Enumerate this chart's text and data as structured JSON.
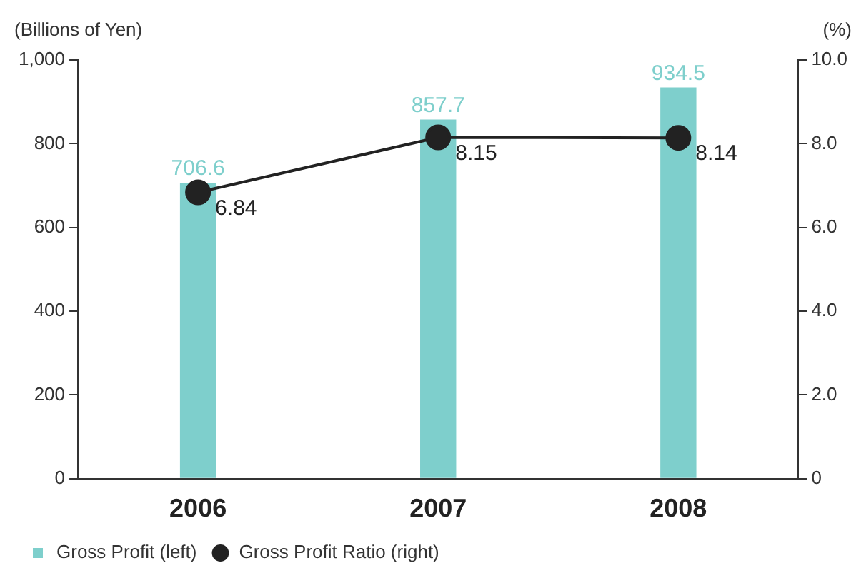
{
  "chart_data": {
    "type": "bar",
    "ylabel": "(Billions of Yen)",
    "y2label": "(%)",
    "categories": [
      "2006",
      "2007",
      "2008"
    ],
    "series": [
      {
        "name": "Gross Profit (left)",
        "color": "#7ecfcc",
        "values": [
          706.6,
          857.7,
          934.5
        ]
      },
      {
        "name": "Gross Profit Ratio (right)",
        "type": "line",
        "axis": "y2",
        "color": "#222222",
        "values": [
          6.84,
          8.15,
          8.14
        ]
      }
    ],
    "ylim": [
      0,
      1000
    ],
    "yticks": [
      0,
      200,
      400,
      600,
      800,
      {
        "value": 1000,
        "label": "1,000"
      }
    ],
    "y2lim": [
      0,
      10
    ],
    "y2ticks": [
      0,
      {
        "value": 2,
        "label": "2.0"
      },
      {
        "value": 4,
        "label": "4.0"
      },
      {
        "value": 6,
        "label": "6.0"
      },
      {
        "value": 8,
        "label": "8.0"
      },
      {
        "value": 10,
        "label": "10.0"
      }
    ],
    "data_labels": true,
    "legend": "bottom left",
    "grid": false,
    "marker": "circle",
    "line_style": "solid"
  }
}
